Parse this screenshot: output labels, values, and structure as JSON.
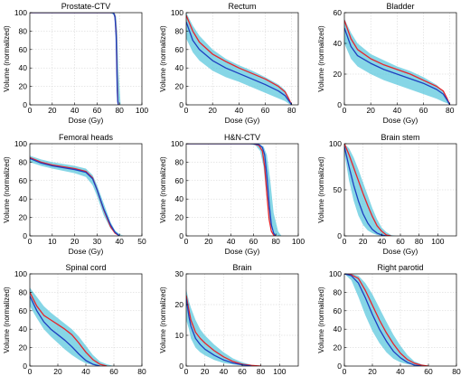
{
  "chart_data": [
    {
      "type": "line",
      "title": "Prostate-CTV",
      "xlabel": "Dose (Gy)",
      "ylabel": "Volume (normalized)",
      "xlim": [
        0,
        100
      ],
      "ylim": [
        0,
        100
      ],
      "xticks": [
        "0",
        "20",
        "40",
        "60",
        "80",
        "100"
      ],
      "yticks": [
        "0",
        "20",
        "40",
        "60",
        "80",
        "100"
      ],
      "grid": true,
      "band": {
        "color": "#5ec8dd",
        "x": [
          0,
          70,
          73,
          75,
          76,
          77,
          78,
          79,
          81
        ],
        "low": [
          100,
          100,
          99,
          97,
          90,
          60,
          20,
          3,
          0
        ],
        "high": [
          100,
          100,
          100,
          100,
          99,
          96,
          80,
          40,
          0
        ]
      },
      "series": [
        {
          "color": "#e8242b",
          "x": [
            0,
            74,
            75,
            76,
            77,
            77.5,
            78,
            78.5,
            79
          ],
          "y": [
            100,
            100,
            99,
            96,
            80,
            55,
            25,
            5,
            0
          ]
        },
        {
          "color": "#1f3fbf",
          "x": [
            0,
            74,
            75,
            76,
            77,
            77.5,
            78,
            78.5,
            79
          ],
          "y": [
            100,
            100,
            99,
            95,
            75,
            45,
            15,
            3,
            0
          ]
        }
      ]
    },
    {
      "type": "line",
      "title": "Rectum",
      "xlabel": "Dose (Gy)",
      "ylabel": "Volume (normalized)",
      "xlim": [
        0,
        85
      ],
      "ylim": [
        0,
        100
      ],
      "xticks": [
        "0",
        "20",
        "40",
        "60",
        "80"
      ],
      "yticks": [
        "0",
        "20",
        "40",
        "60",
        "80",
        "100"
      ],
      "grid": true,
      "band": {
        "color": "#5ec8dd",
        "x": [
          0,
          5,
          10,
          20,
          30,
          40,
          50,
          60,
          70,
          75,
          78,
          80
        ],
        "low": [
          72,
          57,
          48,
          37,
          30,
          25,
          19,
          13,
          7,
          4,
          1,
          0
        ],
        "high": [
          100,
          86,
          75,
          60,
          50,
          43,
          37,
          30,
          22,
          16,
          8,
          0
        ]
      },
      "series": [
        {
          "color": "#e8242b",
          "x": [
            0,
            5,
            10,
            20,
            30,
            40,
            50,
            60,
            70,
            75,
            78,
            80
          ],
          "y": [
            97,
            80,
            68,
            55,
            47,
            40,
            34,
            28,
            20,
            14,
            6,
            0
          ]
        },
        {
          "color": "#1f3fbf",
          "x": [
            0,
            5,
            10,
            20,
            30,
            40,
            50,
            60,
            70,
            75,
            78,
            80
          ],
          "y": [
            90,
            70,
            60,
            48,
            40,
            34,
            28,
            22,
            15,
            10,
            4,
            0
          ]
        }
      ]
    },
    {
      "type": "line",
      "title": "Bladder",
      "xlabel": "Dose (Gy)",
      "ylabel": "Volume (normalized)",
      "xlim": [
        0,
        85
      ],
      "ylim": [
        0,
        60
      ],
      "xticks": [
        "0",
        "20",
        "40",
        "60",
        "80"
      ],
      "yticks": [
        "0",
        "20",
        "40",
        "60"
      ],
      "grid": true,
      "band": {
        "color": "#5ec8dd",
        "x": [
          0,
          5,
          10,
          20,
          30,
          40,
          50,
          60,
          70,
          75,
          78,
          80
        ],
        "low": [
          40,
          30,
          25,
          20,
          16,
          13,
          10,
          7,
          4,
          2,
          1,
          0
        ],
        "high": [
          56,
          47,
          40,
          33,
          29,
          25,
          22,
          18,
          13,
          9,
          4,
          0
        ]
      },
      "series": [
        {
          "color": "#e8242b",
          "x": [
            0,
            5,
            10,
            20,
            30,
            40,
            50,
            60,
            70,
            75,
            78,
            80
          ],
          "y": [
            55,
            43,
            36,
            30,
            26,
            23,
            20,
            16,
            12,
            9,
            4,
            0
          ]
        },
        {
          "color": "#1f3fbf",
          "x": [
            0,
            5,
            10,
            20,
            30,
            40,
            50,
            60,
            70,
            75,
            78,
            80
          ],
          "y": [
            50,
            38,
            32,
            27,
            23,
            20,
            17,
            14,
            10,
            7,
            3,
            0
          ]
        }
      ]
    },
    {
      "type": "line",
      "title": "Femoral heads",
      "xlabel": "Dose (Gy)",
      "ylabel": "Volume (normalized)",
      "xlim": [
        0,
        50
      ],
      "ylim": [
        0,
        100
      ],
      "xticks": [
        "0",
        "10",
        "20",
        "30",
        "40",
        "50"
      ],
      "yticks": [
        "0",
        "20",
        "40",
        "60",
        "80",
        "100"
      ],
      "grid": true,
      "band": {
        "color": "#5ec8dd",
        "x": [
          0,
          5,
          10,
          20,
          25,
          28,
          30,
          33,
          36,
          38,
          40,
          42
        ],
        "low": [
          80,
          76,
          73,
          68,
          64,
          55,
          43,
          22,
          8,
          3,
          1,
          0
        ],
        "high": [
          87,
          83,
          80,
          76,
          73,
          66,
          55,
          35,
          15,
          6,
          2,
          0
        ]
      },
      "series": [
        {
          "color": "#e8242b",
          "x": [
            0,
            5,
            10,
            20,
            25,
            28,
            30,
            33,
            36,
            38,
            40
          ],
          "y": [
            85,
            80,
            77,
            73,
            70,
            63,
            50,
            28,
            10,
            3,
            0
          ]
        },
        {
          "color": "#1f3fbf",
          "x": [
            0,
            5,
            10,
            20,
            25,
            28,
            30,
            33,
            36,
            38,
            40
          ],
          "y": [
            84,
            79,
            76,
            72,
            69,
            62,
            50,
            29,
            12,
            4,
            0
          ]
        }
      ]
    },
    {
      "type": "line",
      "title": "H&N-CTV",
      "xlabel": "Dose (Gy)",
      "ylabel": "Volume (normalized)",
      "xlim": [
        0,
        100
      ],
      "ylim": [
        0,
        100
      ],
      "xticks": [
        "0",
        "20",
        "40",
        "60",
        "80",
        "100"
      ],
      "yticks": [
        "0",
        "20",
        "40",
        "60",
        "80",
        "100"
      ],
      "grid": true,
      "band": {
        "color": "#5ec8dd",
        "x": [
          0,
          55,
          62,
          66,
          69,
          72,
          75,
          78,
          82,
          85
        ],
        "low": [
          100,
          100,
          98,
          92,
          75,
          40,
          12,
          3,
          0,
          0
        ],
        "high": [
          100,
          100,
          100,
          99,
          97,
          88,
          60,
          25,
          5,
          0
        ]
      },
      "series": [
        {
          "color": "#e8242b",
          "x": [
            0,
            60,
            65,
            68,
            70,
            72,
            74,
            76,
            78,
            80
          ],
          "y": [
            100,
            100,
            98,
            92,
            75,
            45,
            18,
            5,
            1,
            0
          ]
        },
        {
          "color": "#1f3fbf",
          "x": [
            0,
            60,
            65,
            68,
            70,
            72,
            74,
            76,
            78,
            80
          ],
          "y": [
            100,
            100,
            99,
            96,
            88,
            65,
            35,
            12,
            3,
            0
          ]
        }
      ]
    },
    {
      "type": "line",
      "title": "Brain stem",
      "xlabel": "Dose (Gy)",
      "ylabel": "Volume (normalized)",
      "xlim": [
        0,
        120
      ],
      "ylim": [
        0,
        100
      ],
      "xticks": [
        "0",
        "20",
        "40",
        "60",
        "80",
        "100"
      ],
      "yticks": [
        "0",
        "50",
        "100"
      ],
      "grid": true,
      "band": {
        "color": "#5ec8dd",
        "x": [
          0,
          5,
          10,
          15,
          20,
          25,
          30,
          35,
          40,
          45,
          50,
          55
        ],
        "low": [
          90,
          60,
          38,
          22,
          12,
          6,
          3,
          1,
          0,
          0,
          0,
          0
        ],
        "high": [
          100,
          95,
          85,
          72,
          58,
          44,
          30,
          18,
          9,
          4,
          1,
          0
        ]
      },
      "series": [
        {
          "color": "#e8242b",
          "x": [
            0,
            5,
            10,
            15,
            20,
            25,
            30,
            35,
            40,
            45,
            50
          ],
          "y": [
            100,
            88,
            74,
            60,
            46,
            33,
            21,
            11,
            5,
            1,
            0
          ]
        },
        {
          "color": "#1f3fbf",
          "x": [
            0,
            5,
            10,
            15,
            20,
            25,
            30,
            35,
            40,
            45
          ],
          "y": [
            97,
            75,
            55,
            38,
            24,
            14,
            7,
            3,
            1,
            0
          ]
        }
      ]
    },
    {
      "type": "line",
      "title": "Spinal cord",
      "xlabel": "Dose (Gy)",
      "ylabel": "Volume (normalized)",
      "xlim": [
        0,
        80
      ],
      "ylim": [
        0,
        100
      ],
      "xticks": [
        "0",
        "20",
        "40",
        "60",
        "80"
      ],
      "yticks": [
        "0",
        "20",
        "40",
        "60",
        "80",
        "100"
      ],
      "grid": true,
      "band": {
        "color": "#5ec8dd",
        "x": [
          0,
          5,
          10,
          15,
          20,
          25,
          30,
          35,
          40,
          45,
          50,
          55,
          60
        ],
        "low": [
          65,
          52,
          40,
          32,
          25,
          18,
          12,
          7,
          3,
          1,
          0,
          0,
          0
        ],
        "high": [
          85,
          75,
          65,
          58,
          52,
          46,
          40,
          32,
          22,
          12,
          5,
          2,
          0
        ]
      },
      "series": [
        {
          "color": "#e8242b",
          "x": [
            0,
            5,
            10,
            15,
            20,
            25,
            30,
            35,
            40,
            45,
            50,
            55
          ],
          "y": [
            80,
            65,
            55,
            50,
            45,
            40,
            34,
            25,
            15,
            7,
            2,
            0
          ]
        },
        {
          "color": "#1f3fbf",
          "x": [
            0,
            5,
            10,
            15,
            20,
            25,
            30,
            35,
            40,
            45,
            50
          ],
          "y": [
            76,
            60,
            48,
            40,
            34,
            28,
            21,
            13,
            6,
            2,
            0
          ]
        }
      ]
    },
    {
      "type": "line",
      "title": "Brain",
      "xlabel": "Dose (Gy)",
      "ylabel": "Volume (normalized)",
      "xlim": [
        0,
        120
      ],
      "ylim": [
        0,
        30
      ],
      "xticks": [
        "0",
        "20",
        "40",
        "60",
        "80",
        "100"
      ],
      "yticks": [
        "0",
        "10",
        "20",
        "30"
      ],
      "grid": true,
      "band": {
        "color": "#5ec8dd",
        "x": [
          0,
          3,
          5,
          10,
          15,
          20,
          30,
          40,
          50,
          60,
          70,
          80
        ],
        "low": [
          15,
          12,
          9,
          6,
          4.5,
          3.5,
          2,
          1,
          0.5,
          0.2,
          0,
          0
        ],
        "high": [
          25,
          21,
          19,
          15,
          12,
          10,
          7,
          4.5,
          2.5,
          1.2,
          0.4,
          0
        ]
      },
      "series": [
        {
          "color": "#e8242b",
          "x": [
            0,
            3,
            5,
            10,
            15,
            20,
            30,
            40,
            50,
            60,
            70,
            80
          ],
          "y": [
            23,
            18,
            15,
            11,
            9,
            7.5,
            5,
            3,
            1.5,
            0.6,
            0.2,
            0
          ]
        },
        {
          "color": "#1f3fbf",
          "x": [
            0,
            3,
            5,
            10,
            15,
            20,
            30,
            40,
            50,
            60,
            70
          ],
          "y": [
            22,
            16,
            13,
            9,
            7,
            5.5,
            3.5,
            2,
            1,
            0.4,
            0
          ]
        }
      ]
    },
    {
      "type": "line",
      "title": "Right parotid",
      "xlabel": "Dose (Gy)",
      "ylabel": "Volume (normalized)",
      "xlim": [
        0,
        80
      ],
      "ylim": [
        0,
        100
      ],
      "xticks": [
        "0",
        "20",
        "40",
        "60",
        "80"
      ],
      "yticks": [
        "0",
        "20",
        "40",
        "60",
        "80",
        "100"
      ],
      "grid": true,
      "band": {
        "color": "#5ec8dd",
        "x": [
          0,
          5,
          10,
          15,
          20,
          25,
          30,
          35,
          40,
          45,
          50,
          55,
          60
        ],
        "low": [
          100,
          93,
          75,
          55,
          38,
          25,
          15,
          8,
          4,
          2,
          1,
          0,
          0
        ],
        "high": [
          100,
          100,
          98,
          90,
          78,
          63,
          48,
          34,
          22,
          12,
          5,
          2,
          0
        ]
      },
      "series": [
        {
          "color": "#e8242b",
          "x": [
            0,
            5,
            10,
            15,
            20,
            25,
            30,
            35,
            40,
            45,
            50,
            55,
            60
          ],
          "y": [
            100,
            99,
            95,
            82,
            66,
            50,
            36,
            24,
            14,
            7,
            3,
            1,
            0
          ]
        },
        {
          "color": "#1f3fbf",
          "x": [
            0,
            5,
            10,
            15,
            20,
            25,
            30,
            35,
            40,
            45,
            50,
            55
          ],
          "y": [
            100,
            98,
            90,
            74,
            56,
            40,
            27,
            16,
            9,
            4,
            1,
            0
          ]
        }
      ]
    }
  ]
}
